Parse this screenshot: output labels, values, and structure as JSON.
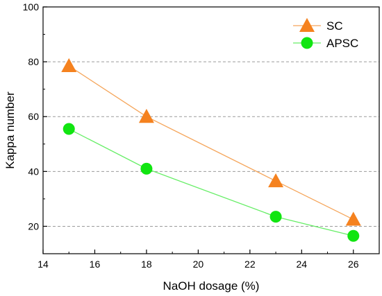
{
  "chart_data": {
    "type": "line",
    "title": "",
    "xlabel": "NaOH dosage (%)",
    "ylabel": "Kappa number",
    "xlim": [
      14,
      27
    ],
    "ylim": [
      10,
      100
    ],
    "x_ticks": [
      14,
      16,
      18,
      20,
      22,
      24,
      26
    ],
    "y_ticks": [
      20,
      40,
      60,
      80,
      100
    ],
    "grid": "horizontal dashed",
    "legend_position": "top-right",
    "series": [
      {
        "name": "SC",
        "marker": "triangle",
        "color": "#F5821F",
        "line_color": "#F5A55A",
        "x": [
          15,
          18,
          23,
          26
        ],
        "y": [
          78.5,
          60,
          36.5,
          22.5
        ]
      },
      {
        "name": "APSC",
        "marker": "circle",
        "color": "#11E511",
        "line_color": "#66EE66",
        "x": [
          15,
          18,
          23,
          26
        ],
        "y": [
          55.5,
          41,
          23.5,
          16.5
        ]
      }
    ]
  }
}
